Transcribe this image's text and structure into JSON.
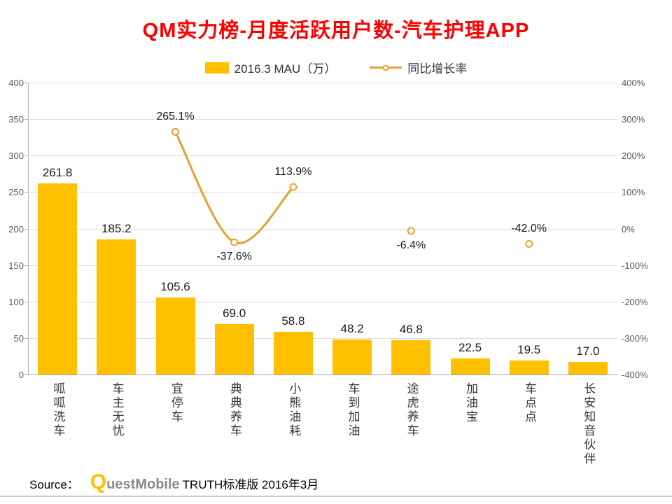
{
  "title": "QM实力榜-月度活跃用户数-汽车护理APP",
  "legend": {
    "bar_label": "2016.3 MAU（万）",
    "line_label": "同比增长率"
  },
  "colors": {
    "bar": "#FFC000",
    "line": "#ED9D31",
    "title": "#FF0000",
    "grid": "#DCDCDC"
  },
  "chart_data": {
    "type": "bar",
    "subtype": "bar+line combo, dual axis",
    "title": "QM实力榜-月度活跃用户数-汽车护理APP",
    "categories": [
      "呱呱洗车",
      "车主无忧",
      "宜停车",
      "典典养车",
      "小熊油耗",
      "车到加油",
      "途虎养车",
      "加油宝",
      "车点点",
      "长安知音伙伴"
    ],
    "series": [
      {
        "name": "2016.3 MAU（万）",
        "type": "bar",
        "axis": "left",
        "values": [
          261.8,
          185.2,
          105.6,
          69.0,
          58.8,
          48.2,
          46.8,
          22.5,
          19.5,
          17.0
        ]
      },
      {
        "name": "同比增长率",
        "type": "line",
        "axis": "right",
        "unit": "%",
        "values": [
          null,
          null,
          265.1,
          -37.6,
          113.9,
          null,
          -6.4,
          null,
          -42.0,
          null
        ]
      }
    ],
    "left_axis": {
      "min": 0,
      "max": 400,
      "step": 50
    },
    "right_axis": {
      "min": -400,
      "max": 400,
      "step": 100,
      "unit": "%"
    },
    "label_positions": [
      "above",
      "below",
      "above",
      "below",
      "above"
    ],
    "grid": true,
    "legend_position": "top"
  },
  "source": {
    "prefix": "Source：",
    "logo_q": "Q",
    "logo_rest": "uestMobile",
    "text": "TRUTH标准版 2016年3月"
  }
}
